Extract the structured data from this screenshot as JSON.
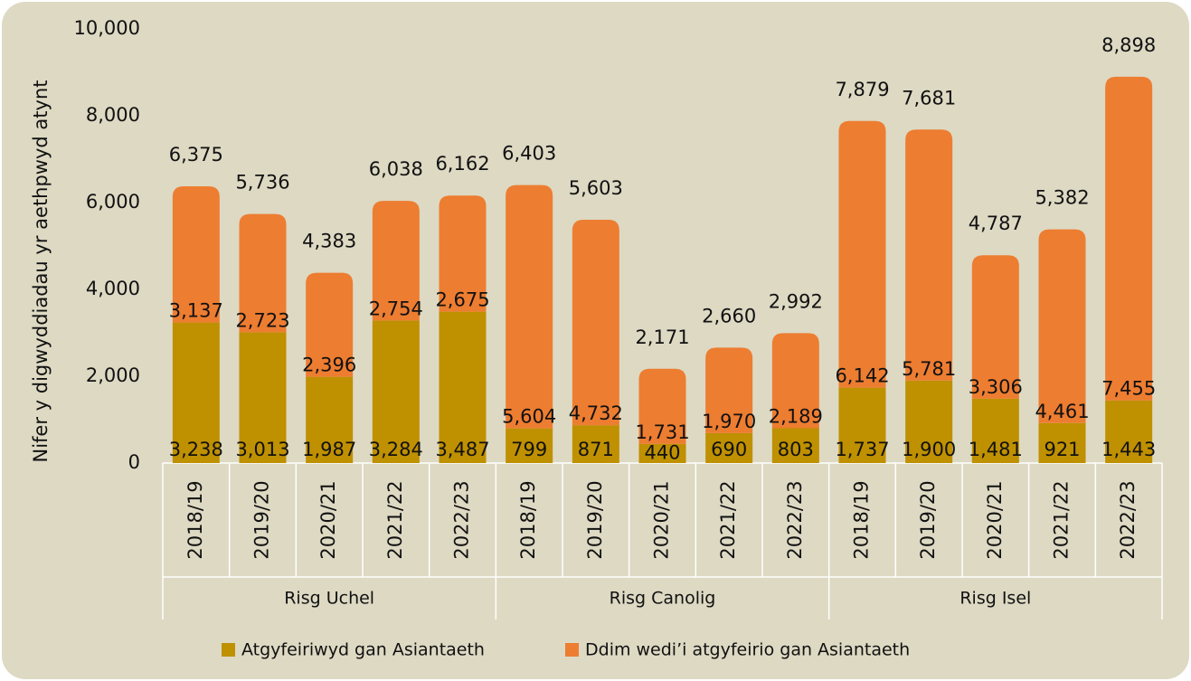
{
  "chart_data": {
    "type": "stacked_bar",
    "y_label": "Nifer y digwyddiadau yr aethpwyd atynt",
    "groups": [
      {
        "name": "Risg Uchel",
        "categories": [
          "2018/19",
          "2019/20",
          "2020/21",
          "2021/22",
          "2022/23"
        ]
      },
      {
        "name": "Risg Canolig",
        "categories": [
          "2018/19",
          "2019/20",
          "2020/21",
          "2021/22",
          "2022/23"
        ]
      },
      {
        "name": "Risg Isel",
        "categories": [
          "2018/19",
          "2019/20",
          "2020/21",
          "2021/22",
          "2022/23"
        ]
      }
    ],
    "series": [
      {
        "name": "Atgyfeiriwyd gan Asiantaeth",
        "color": "#bf9000",
        "values": [
          3238,
          3013,
          1987,
          3284,
          3487,
          799,
          871,
          440,
          690,
          803,
          1737,
          1900,
          1481,
          921,
          1443
        ],
        "value_labels": [
          "3,238",
          "3,013",
          "1,987",
          "3,284",
          "3,487",
          "799",
          "871",
          "440",
          "690",
          "803",
          "1,737",
          "1,900",
          "1,481",
          "921",
          "1,443"
        ]
      },
      {
        "name": "Ddim wedi’i atgyfeirio gan Asiantaeth",
        "color": "#ed7d31",
        "values": [
          3137,
          2723,
          2396,
          2754,
          2675,
          5604,
          4732,
          1731,
          1970,
          2189,
          6142,
          5781,
          3306,
          4461,
          7455
        ],
        "value_labels": [
          "3,137",
          "2,723",
          "2,396",
          "2,754",
          "2,675",
          "5,604",
          "4,732",
          "1,731",
          "1,970",
          "2,189",
          "6,142",
          "5,781",
          "3,306",
          "4,461",
          "7,455"
        ]
      }
    ],
    "totals": {
      "values": [
        6375,
        5736,
        4383,
        6038,
        6162,
        6403,
        5603,
        2171,
        2660,
        2992,
        7879,
        7681,
        4787,
        5382,
        8898
      ],
      "value_labels": [
        "6,375",
        "5,736",
        "4,383",
        "6,038",
        "6,162",
        "6,403",
        "5,603",
        "2,171",
        "2,660",
        "2,992",
        "7,879",
        "7,681",
        "4,787",
        "5,382",
        "8,898"
      ]
    },
    "ylim": [
      0,
      10000
    ],
    "yticks": [
      0,
      {
        "value": 2000,
        "label": "2,000"
      },
      {
        "value": 4000,
        "label": "4,000"
      },
      {
        "value": 6000,
        "label": "6,000"
      },
      {
        "value": 8000,
        "label": "8,000"
      },
      {
        "value": 10000,
        "label": "10,000"
      }
    ],
    "grid": false,
    "legend": "bottom"
  }
}
